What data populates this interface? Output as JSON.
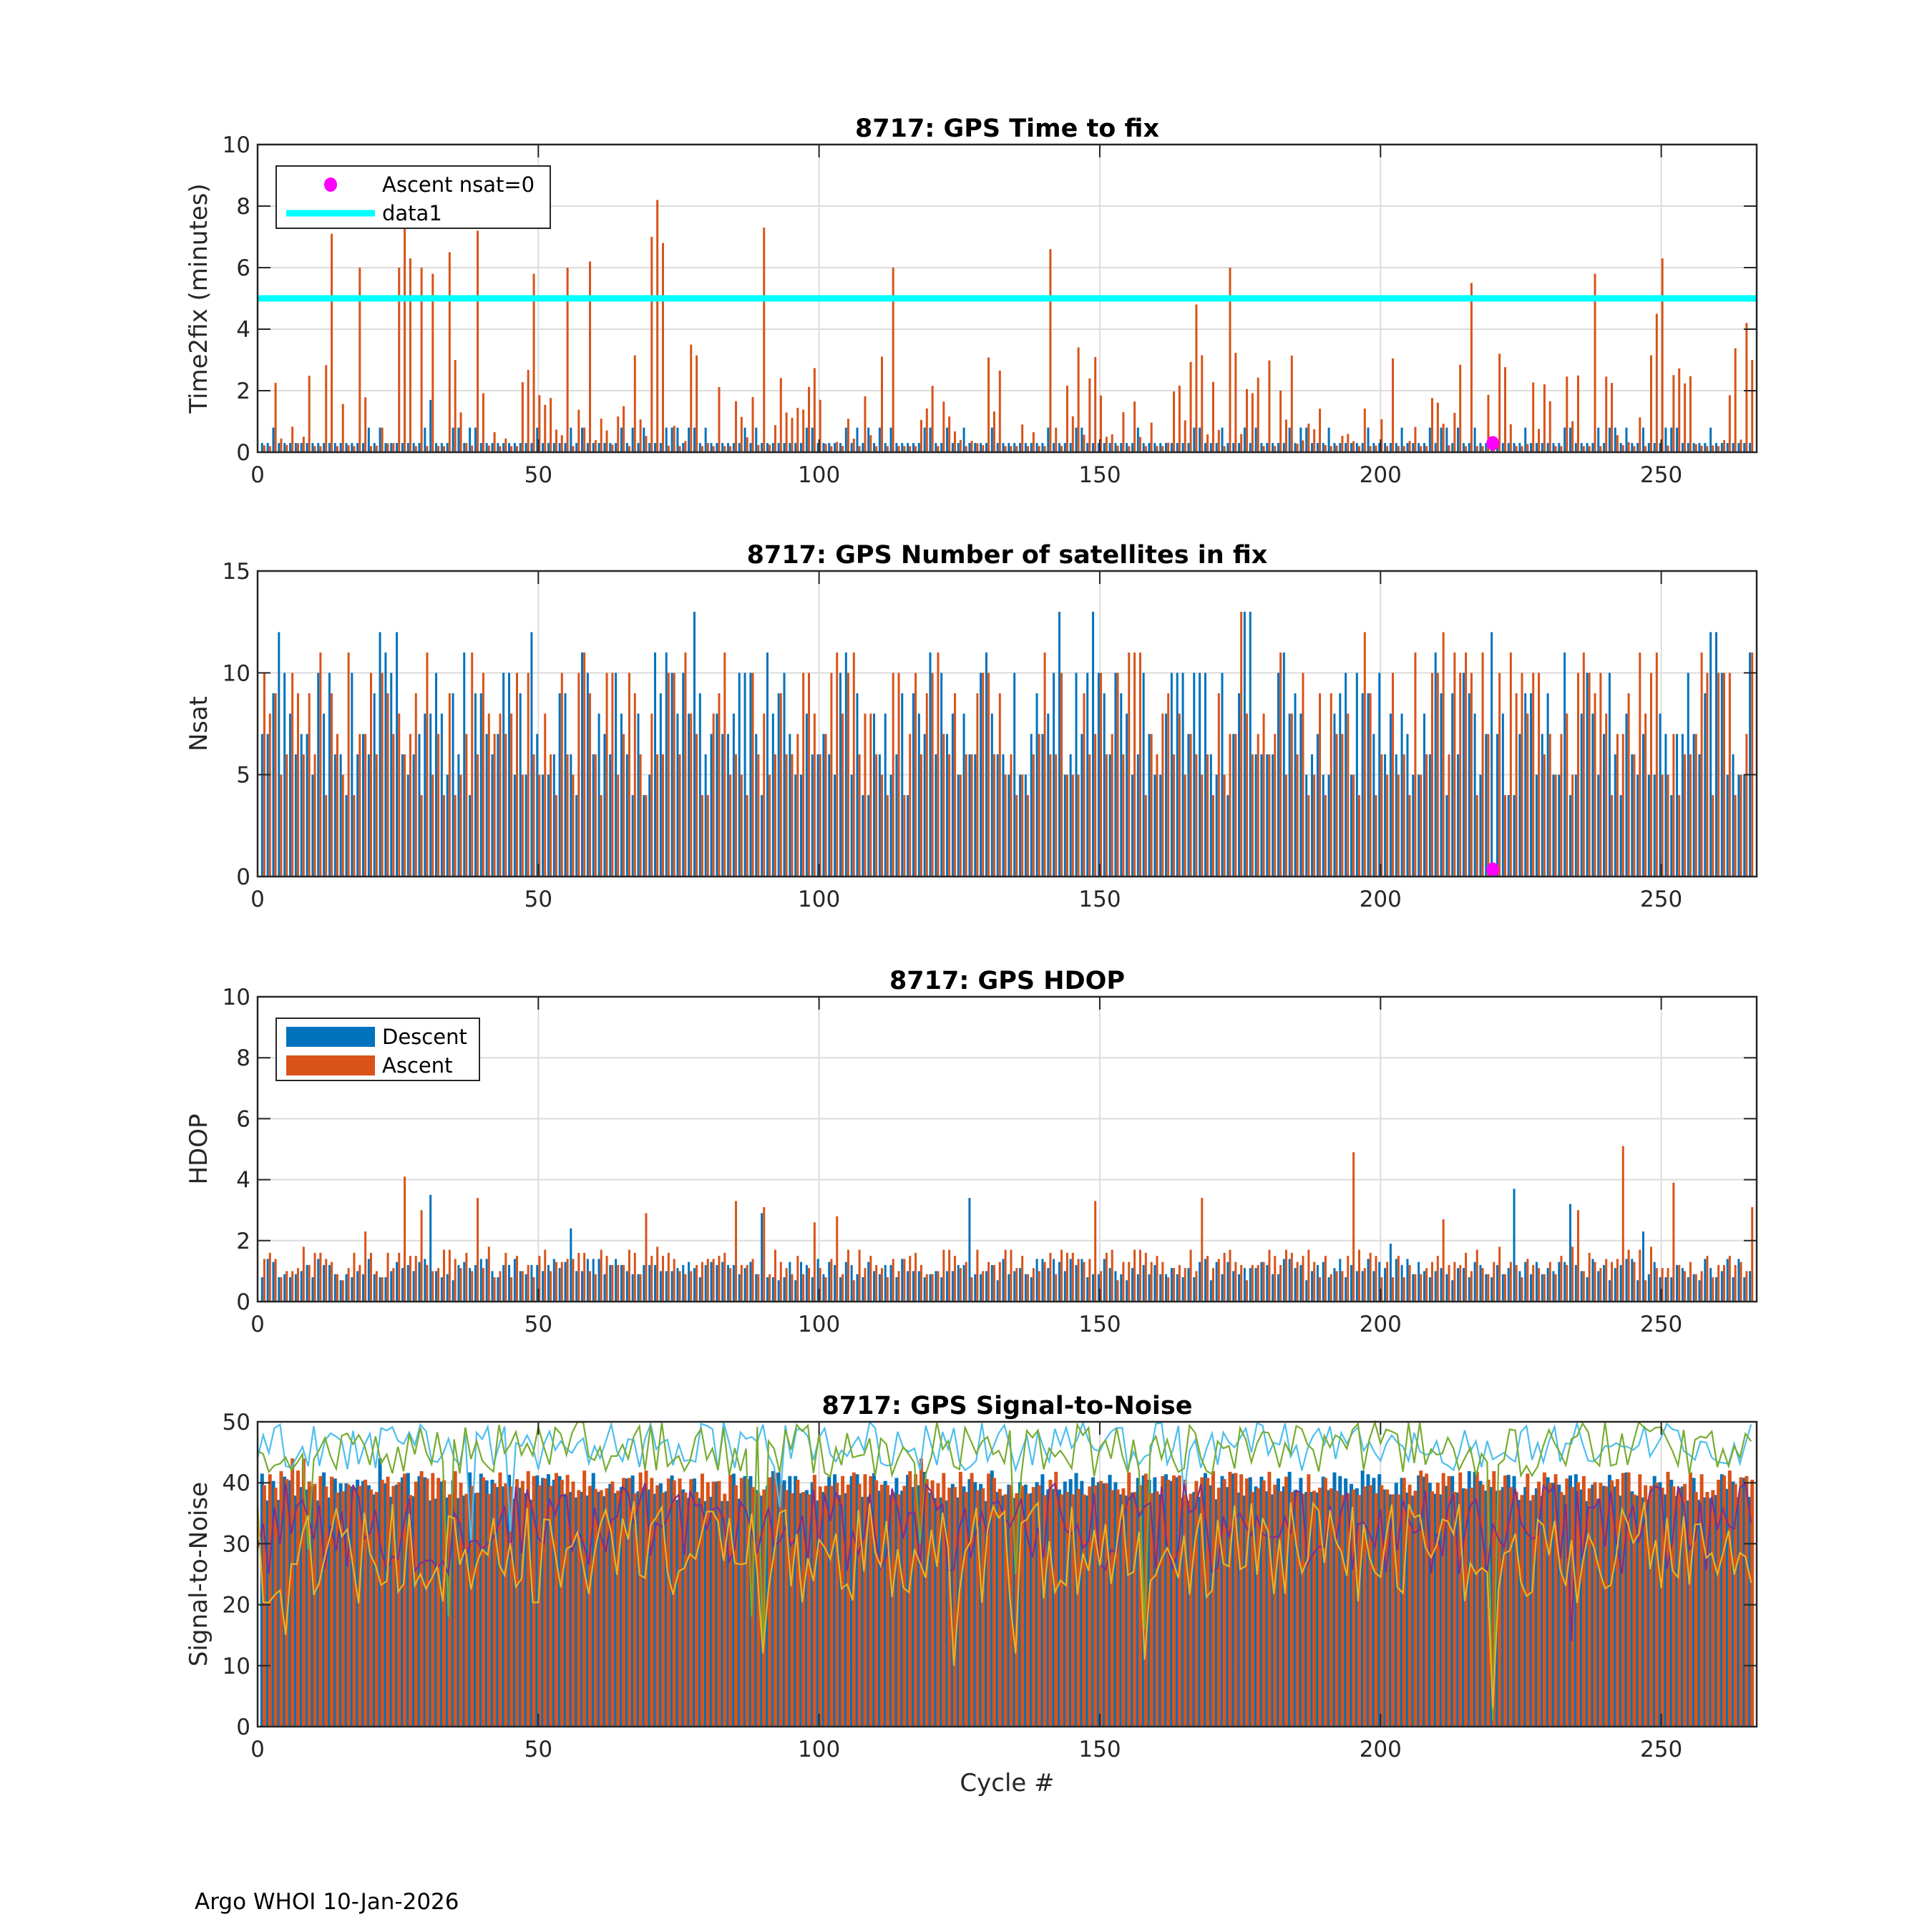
{
  "footer": "Argo WHOI 10-Jan-2026",
  "colors": {
    "descent": "#0072BD",
    "ascent": "#D95319",
    "nsat0": "#FF00FF",
    "data1": "#00FFFF",
    "snr_lines": [
      "#4DBEEE",
      "#77AC30",
      "#7E2F8E",
      "#EDB120"
    ]
  },
  "chart_data": [
    {
      "type": "bar",
      "title": "8717: GPS Time to fix",
      "ylabel": "Time2fix (minutes)",
      "xlabel": "",
      "xlim": [
        0,
        267
      ],
      "ylim": [
        0,
        10
      ],
      "xticks": [
        "0",
        "50",
        "100",
        "150",
        "200",
        "250"
      ],
      "xtick_values": [
        0,
        50,
        100,
        150,
        200,
        250
      ],
      "yticks": [
        "0",
        "2",
        "4",
        "6",
        "8",
        "10"
      ],
      "ytick_values": [
        0,
        2,
        4,
        6,
        8,
        10
      ],
      "legend": {
        "placement": "top-left",
        "entries": [
          "Ascent nsat=0",
          "data1"
        ]
      },
      "reference_line": {
        "name": "data1",
        "y": 5
      },
      "markers": [
        {
          "name": "Ascent nsat=0",
          "x": 220,
          "y": 0.2
        }
      ],
      "series": [
        {
          "name": "Descent",
          "baseline": [
            0.3,
            0.8
          ],
          "peaks": [
            [
              31,
              1.7
            ],
            [
              35,
              0.8
            ],
            [
              56,
              0.8
            ],
            [
              141,
              0.8
            ],
            [
              217,
              0.8
            ],
            [
              239,
              0.8
            ]
          ]
        },
        {
          "name": "Ascent",
          "baseline": [
            0.2,
            3.5
          ],
          "peaks": [
            [
              13,
              7.1
            ],
            [
              18,
              6
            ],
            [
              25,
              6
            ],
            [
              26,
              7.3
            ],
            [
              27,
              6.3
            ],
            [
              29,
              6
            ],
            [
              31,
              5.8
            ],
            [
              34,
              6.5
            ],
            [
              39,
              7.2
            ],
            [
              49,
              5.8
            ],
            [
              55,
              6
            ],
            [
              59,
              6.2
            ],
            [
              70,
              7
            ],
            [
              71,
              8.2
            ],
            [
              72,
              6.8
            ],
            [
              90,
              7.3
            ],
            [
              113,
              6
            ],
            [
              141,
              6.6
            ],
            [
              167,
              4.8
            ],
            [
              173,
              6
            ],
            [
              216,
              5.5
            ],
            [
              238,
              5.8
            ],
            [
              249,
              4.5
            ],
            [
              250,
              6.3
            ],
            [
              265,
              4.2
            ],
            [
              266,
              3
            ]
          ]
        }
      ]
    },
    {
      "type": "bar",
      "title": "8717: GPS Number of satellites in fix",
      "ylabel": "Nsat",
      "xlabel": "",
      "xlim": [
        0,
        267
      ],
      "ylim": [
        0,
        15
      ],
      "xticks": [
        "0",
        "50",
        "100",
        "150",
        "200",
        "250"
      ],
      "xtick_values": [
        0,
        50,
        100,
        150,
        200,
        250
      ],
      "yticks": [
        "0",
        "5",
        "10",
        "15"
      ],
      "ytick_values": [
        0,
        5,
        10,
        15
      ],
      "markers": [
        {
          "name": "Ascent nsat=0",
          "x": 220,
          "y": 0.2
        }
      ],
      "series": [
        {
          "name": "Descent",
          "baseline": [
            4,
            11
          ],
          "peaks": [
            [
              4,
              12
            ],
            [
              22,
              12
            ],
            [
              25,
              12
            ],
            [
              49,
              12
            ],
            [
              78,
              13
            ],
            [
              143,
              13
            ],
            [
              149,
              13
            ],
            [
              176,
              13
            ],
            [
              177,
              13
            ],
            [
              220,
              12
            ],
            [
              259,
              12
            ],
            [
              260,
              12
            ]
          ]
        },
        {
          "name": "Ascent",
          "baseline": [
            4,
            11
          ],
          "peaks": [
            [
              175,
              13
            ],
            [
              220,
              0
            ],
            [
              197,
              12
            ],
            [
              211,
              12
            ]
          ]
        }
      ]
    },
    {
      "type": "bar",
      "title": "8717: GPS HDOP",
      "ylabel": "HDOP",
      "xlabel": "",
      "xlim": [
        0,
        267
      ],
      "ylim": [
        0,
        10
      ],
      "xticks": [
        "0",
        "50",
        "100",
        "150",
        "200",
        "250"
      ],
      "xtick_values": [
        0,
        50,
        100,
        150,
        200,
        250
      ],
      "yticks": [
        "0",
        "2",
        "4",
        "6",
        "8",
        "10"
      ],
      "ytick_values": [
        0,
        2,
        4,
        6,
        8,
        10
      ],
      "legend": {
        "placement": "top-left",
        "entries": [
          "Descent",
          "Ascent"
        ]
      },
      "series": [
        {
          "name": "Descent",
          "baseline": [
            0.7,
            1.4
          ],
          "peaks": [
            [
              31,
              3.5
            ],
            [
              56,
              2.4
            ],
            [
              90,
              2.9
            ],
            [
              127,
              3.4
            ],
            [
              202,
              1.9
            ],
            [
              224,
              3.7
            ],
            [
              234,
              3.2
            ],
            [
              247,
              2.3
            ]
          ]
        },
        {
          "name": "Ascent",
          "baseline": [
            0.7,
            1.8
          ],
          "peaks": [
            [
              19,
              2.3
            ],
            [
              26,
              4.1
            ],
            [
              29,
              3
            ],
            [
              39,
              3.4
            ],
            [
              69,
              2.9
            ],
            [
              85,
              3.3
            ],
            [
              90,
              3.1
            ],
            [
              99,
              2.6
            ],
            [
              103,
              2.8
            ],
            [
              149,
              3.3
            ],
            [
              168,
              3.4
            ],
            [
              195,
              4.9
            ],
            [
              211,
              2.7
            ],
            [
              235,
              3
            ],
            [
              243,
              5.1
            ],
            [
              252,
              3.9
            ],
            [
              266,
              3.1
            ]
          ]
        }
      ]
    },
    {
      "type": "bar",
      "title": "8717: GPS Signal-to-Noise",
      "ylabel": "Signal-to-Noise",
      "xlabel": "Cycle #",
      "xlim": [
        0,
        267
      ],
      "ylim": [
        0,
        50
      ],
      "xticks": [
        "0",
        "50",
        "100",
        "150",
        "200",
        "250"
      ],
      "xtick_values": [
        0,
        50,
        100,
        150,
        200,
        250
      ],
      "yticks": [
        "0",
        "10",
        "20",
        "30",
        "40",
        "50"
      ],
      "ytick_values": [
        0,
        10,
        20,
        30,
        40,
        50
      ],
      "series": [
        {
          "name": "Descent",
          "baseline": [
            37,
            42
          ],
          "peaks": [
            [
              22,
              44
            ]
          ]
        },
        {
          "name": "Ascent",
          "baseline": [
            38,
            42
          ],
          "peaks": [
            [
              6,
              44
            ],
            [
              8,
              44
            ],
            [
              118,
              44
            ]
          ]
        }
      ],
      "lines": [
        {
          "name": "SNR max (cyan)",
          "range": [
            42,
            50
          ],
          "dips": [
            [
              38,
              30
            ],
            [
              45,
              32
            ],
            [
              93,
              36
            ],
            [
              165,
              38
            ]
          ]
        },
        {
          "name": "SNR max (green)",
          "range": [
            41,
            50
          ],
          "dips": [
            [
              9,
              29
            ],
            [
              34,
              18
            ],
            [
              88,
              18
            ],
            [
              90,
              12
            ],
            [
              118,
              30
            ],
            [
              158,
              16
            ],
            [
              220,
              1
            ],
            [
              135,
              25
            ]
          ]
        },
        {
          "name": "SNR mean (purple)",
          "range": [
            25,
            40
          ],
          "dips": [
            [
              234,
              14
            ]
          ]
        },
        {
          "name": "SNR min (yellow)",
          "range": [
            20,
            37
          ],
          "dips": [
            [
              5,
              15
            ],
            [
              90,
              12
            ],
            [
              124,
              10
            ],
            [
              135,
              12
            ],
            [
              158,
              11
            ],
            [
              220,
              3
            ]
          ]
        }
      ]
    }
  ]
}
